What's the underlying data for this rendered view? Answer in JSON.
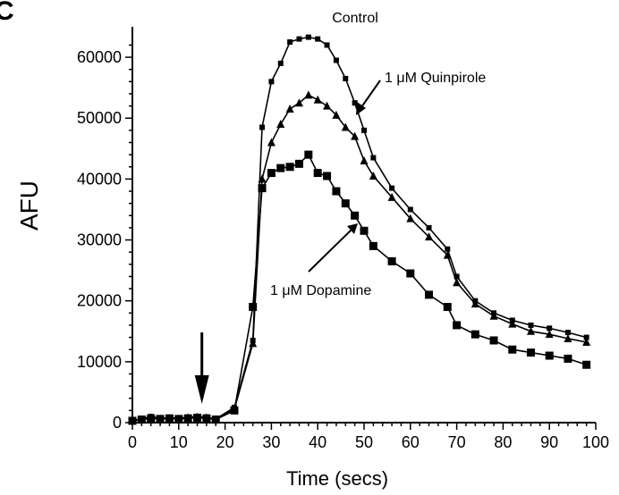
{
  "panel_label": "C",
  "chart_data": {
    "type": "line",
    "title": "",
    "xlabel": "Time (secs)",
    "ylabel": "AFU",
    "xlim": [
      0,
      100
    ],
    "ylim": [
      0,
      65000
    ],
    "x_ticks": [
      0,
      10,
      20,
      30,
      40,
      50,
      60,
      70,
      80,
      90,
      100
    ],
    "y_ticks": [
      0,
      10000,
      20000,
      30000,
      40000,
      50000,
      60000
    ],
    "grid": false,
    "legend": "none",
    "series": [
      {
        "name": "Control",
        "marker": "circle",
        "points": [
          [
            0,
            400
          ],
          [
            2,
            600
          ],
          [
            4,
            1000
          ],
          [
            6,
            700
          ],
          [
            8,
            800
          ],
          [
            10,
            700
          ],
          [
            12,
            900
          ],
          [
            14,
            1000
          ],
          [
            16,
            900
          ],
          [
            18,
            600
          ],
          [
            22,
            2500
          ],
          [
            26,
            13500
          ],
          [
            28,
            48500
          ],
          [
            30,
            56000
          ],
          [
            32,
            59000
          ],
          [
            34,
            62500
          ],
          [
            36,
            63000
          ],
          [
            38,
            63300
          ],
          [
            40,
            63000
          ],
          [
            42,
            62000
          ],
          [
            44,
            59500
          ],
          [
            46,
            56500
          ],
          [
            48,
            52500
          ],
          [
            50,
            48000
          ],
          [
            52,
            43500
          ],
          [
            56,
            38500
          ],
          [
            60,
            35000
          ],
          [
            64,
            32000
          ],
          [
            68,
            28500
          ],
          [
            70,
            24000
          ],
          [
            74,
            20000
          ],
          [
            78,
            18000
          ],
          [
            82,
            16800
          ],
          [
            86,
            16000
          ],
          [
            90,
            15500
          ],
          [
            94,
            14800
          ],
          [
            98,
            14000
          ]
        ]
      },
      {
        "name": "1 μM Quinpirole",
        "marker": "triangle",
        "points": [
          [
            0,
            300
          ],
          [
            2,
            500
          ],
          [
            4,
            800
          ],
          [
            6,
            600
          ],
          [
            8,
            700
          ],
          [
            10,
            600
          ],
          [
            12,
            800
          ],
          [
            14,
            900
          ],
          [
            16,
            800
          ],
          [
            18,
            500
          ],
          [
            22,
            2200
          ],
          [
            26,
            13000
          ],
          [
            28,
            40000
          ],
          [
            30,
            46000
          ],
          [
            32,
            49000
          ],
          [
            34,
            51500
          ],
          [
            36,
            52500
          ],
          [
            38,
            53800
          ],
          [
            40,
            53000
          ],
          [
            42,
            52000
          ],
          [
            44,
            50500
          ],
          [
            46,
            48500
          ],
          [
            48,
            47000
          ],
          [
            50,
            43000
          ],
          [
            52,
            40500
          ],
          [
            56,
            37000
          ],
          [
            60,
            33500
          ],
          [
            64,
            30500
          ],
          [
            68,
            27500
          ],
          [
            70,
            23000
          ],
          [
            74,
            19500
          ],
          [
            78,
            17500
          ],
          [
            82,
            16200
          ],
          [
            86,
            15000
          ],
          [
            90,
            14500
          ],
          [
            94,
            13800
          ],
          [
            98,
            13200
          ]
        ]
      },
      {
        "name": "1 μM Dopamine",
        "marker": "square",
        "points": [
          [
            0,
            300
          ],
          [
            2,
            500
          ],
          [
            4,
            700
          ],
          [
            6,
            600
          ],
          [
            8,
            700
          ],
          [
            10,
            600
          ],
          [
            12,
            700
          ],
          [
            14,
            800
          ],
          [
            16,
            700
          ],
          [
            18,
            500
          ],
          [
            22,
            2000
          ],
          [
            26,
            19000
          ],
          [
            28,
            38500
          ],
          [
            30,
            41000
          ],
          [
            32,
            41800
          ],
          [
            34,
            42000
          ],
          [
            36,
            42500
          ],
          [
            38,
            44000
          ],
          [
            40,
            41000
          ],
          [
            42,
            40500
          ],
          [
            44,
            38000
          ],
          [
            46,
            36000
          ],
          [
            48,
            34000
          ],
          [
            50,
            31500
          ],
          [
            52,
            29000
          ],
          [
            56,
            26500
          ],
          [
            60,
            24500
          ],
          [
            64,
            21000
          ],
          [
            68,
            19000
          ],
          [
            70,
            16000
          ],
          [
            74,
            14500
          ],
          [
            78,
            13500
          ],
          [
            82,
            12000
          ],
          [
            86,
            11500
          ],
          [
            90,
            11000
          ],
          [
            94,
            10500
          ],
          [
            98,
            9500
          ]
        ]
      }
    ],
    "annotations": [
      {
        "id": "control",
        "text": "Control"
      },
      {
        "id": "quinpirole",
        "text": "1 μM Quinpirole"
      },
      {
        "id": "dopamine",
        "text": "1 μM Dopamine"
      }
    ],
    "stimulus_arrow_x": 15
  }
}
